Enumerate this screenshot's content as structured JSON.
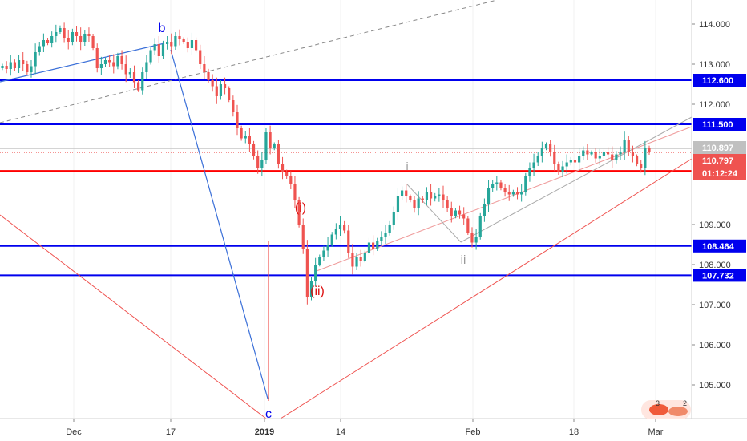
{
  "chart_data": {
    "type": "candlestick",
    "y_axis": {
      "position": "right",
      "range": [
        104.35,
        114.55
      ],
      "ticks": [
        "114.000",
        "113.000",
        "112.000",
        "109.000",
        "108.000",
        "107.000",
        "106.000",
        "105.000"
      ]
    },
    "x_axis": {
      "ticks": [
        "Dec",
        "17",
        "2019",
        "14",
        "Feb",
        "18",
        "Mar"
      ]
    },
    "horizontal_levels": [
      {
        "label": "112.600",
        "value": 112.6,
        "color": "#0000ee"
      },
      {
        "label": "111.500",
        "value": 111.5,
        "color": "#0000ee"
      },
      {
        "label": "108.464",
        "value": 108.464,
        "color": "#0000ee"
      },
      {
        "label": "107.732",
        "value": 107.732,
        "color": "#0000ee"
      },
      {
        "label": "110.338",
        "value": 110.338,
        "color": "#ff0000"
      }
    ],
    "price_badges": [
      {
        "label": "110.897",
        "value": 110.897,
        "color": "#c0c0c0",
        "text_color": "#111111"
      },
      {
        "label": "110.797",
        "value": 110.797,
        "color": "#ef5350",
        "text_color": "#ffffff"
      },
      {
        "label": "01:12:24",
        "value": 110.57,
        "color": "#ef5350",
        "text_color": "#ffffff"
      }
    ],
    "wave_labels": [
      {
        "text": "b",
        "color": "#0000ee"
      },
      {
        "text": "c",
        "color": "#0000ee"
      },
      {
        "text": "(i)",
        "color": "#dd1111"
      },
      {
        "text": "(ii)",
        "color": "#dd1111"
      },
      {
        "text": "i",
        "color": "#999999"
      },
      {
        "text": "ii",
        "color": "#999999"
      }
    ],
    "closes": [
      112.96,
      112.88,
      113.05,
      112.9,
      113.1,
      113.0,
      112.8,
      112.95,
      113.3,
      113.45,
      113.6,
      113.52,
      113.7,
      113.8,
      113.9,
      113.65,
      113.55,
      113.8,
      113.7,
      113.55,
      113.75,
      113.7,
      113.4,
      112.9,
      113.0,
      113.1,
      113.05,
      112.95,
      113.2,
      113.0,
      112.75,
      112.8,
      112.55,
      112.35,
      112.8,
      113.05,
      113.35,
      113.5,
      113.2,
      113.5,
      113.55,
      113.45,
      113.7,
      113.62,
      113.55,
      113.4,
      113.6,
      113.35,
      113.0,
      112.8,
      112.6,
      112.45,
      112.2,
      112.5,
      112.4,
      112.1,
      111.8,
      111.4,
      111.15,
      111.2,
      111.0,
      110.7,
      110.4,
      110.6,
      111.3,
      110.9,
      111.0,
      110.5,
      110.3,
      110.2,
      110.0,
      109.6,
      109.0,
      108.4,
      107.2,
      107.6,
      108.0,
      108.2,
      108.35,
      108.5,
      108.75,
      108.9,
      109.0,
      108.85,
      108.3,
      107.95,
      108.2,
      108.1,
      108.3,
      108.55,
      108.4,
      108.6,
      108.7,
      108.8,
      109.0,
      109.3,
      109.7,
      109.85,
      109.7,
      109.6,
      109.4,
      109.65,
      109.6,
      109.8,
      109.65,
      109.7,
      109.75,
      109.6,
      109.4,
      109.2,
      109.35,
      109.25,
      109.15,
      108.8,
      108.55,
      108.7,
      109.2,
      109.5,
      109.9,
      110.0,
      110.05,
      109.9,
      109.8,
      109.75,
      109.8,
      109.75,
      109.8,
      110.2,
      110.4,
      110.55,
      110.7,
      110.9,
      111.0,
      110.8,
      110.5,
      110.3,
      110.45,
      110.55,
      110.6,
      110.55,
      110.7,
      110.85,
      110.75,
      110.8,
      110.65,
      110.7,
      110.8,
      110.75,
      110.6,
      110.75,
      110.8,
      111.1,
      110.8,
      110.7,
      110.5,
      110.4,
      110.9,
      110.8
    ]
  }
}
